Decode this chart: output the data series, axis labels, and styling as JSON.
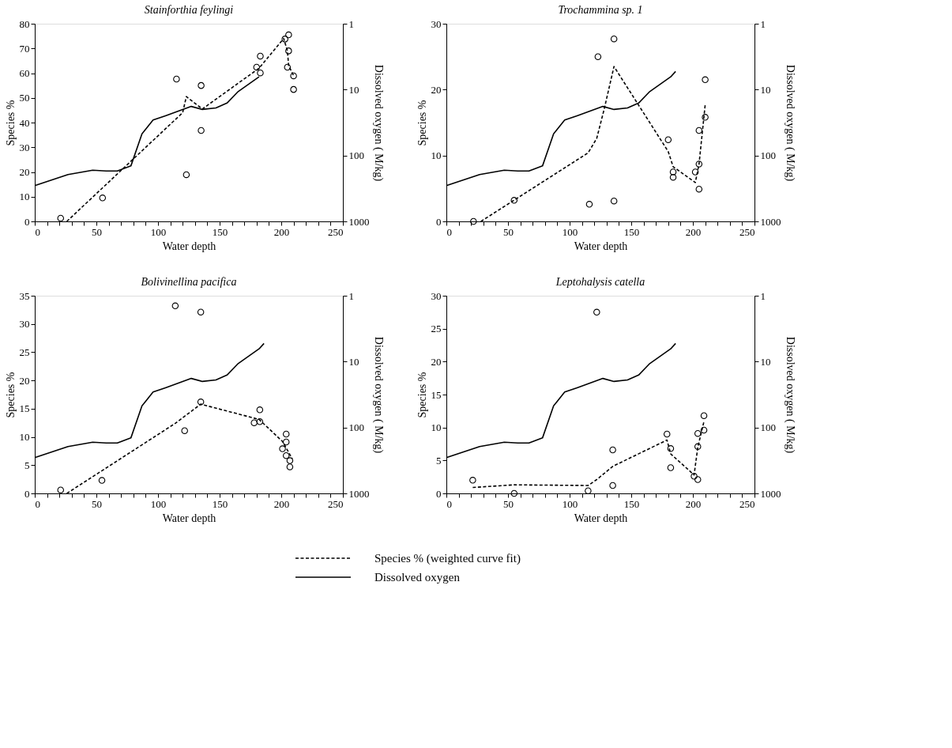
{
  "chart_data": [
    {
      "type": "scatter",
      "title": "Stainforthia feylingi",
      "xlabel": "Water depth",
      "ylabel": "Species %",
      "y2label": "Dissolved oxygen ( M/kg)",
      "log": "y2",
      "legend": "bottom",
      "xlim": [
        0,
        250
      ],
      "xticks": [
        0,
        {
          "value": 10,
          "label": null
        },
        {
          "value": 20,
          "label": null
        },
        {
          "value": 30,
          "label": null
        },
        {
          "value": 40,
          "label": null
        },
        50,
        {
          "value": 60,
          "label": null
        },
        {
          "value": 70,
          "label": null
        },
        {
          "value": 80,
          "label": null
        },
        {
          "value": 90,
          "label": null
        },
        100,
        {
          "value": 110,
          "label": null
        },
        {
          "value": 120,
          "label": null
        },
        {
          "value": 130,
          "label": null
        },
        {
          "value": 140,
          "label": null
        },
        150,
        {
          "value": 160,
          "label": null
        },
        {
          "value": 170,
          "label": null
        },
        {
          "value": 180,
          "label": null
        },
        {
          "value": 190,
          "label": null
        },
        200,
        {
          "value": 210,
          "label": null
        },
        {
          "value": 220,
          "label": null
        },
        {
          "value": 230,
          "label": null
        },
        {
          "value": 240,
          "label": null
        },
        250
      ],
      "ylim": [
        0,
        80
      ],
      "yticks": [
        0,
        10,
        20,
        30,
        40,
        50,
        60,
        70,
        80
      ],
      "y2lim": [
        1000,
        1
      ],
      "y2ticks": [
        1,
        10,
        100,
        1000
      ],
      "series": [
        {
          "marker": "circle",
          "color": "#000000",
          "x": [
            21,
            55,
            115,
            123,
            135,
            135,
            180,
            183,
            183,
            203,
            206,
            206,
            205,
            210,
            210
          ],
          "values": [
            1.3,
            9.5,
            57.6,
            18.9,
            55,
            36.8,
            62.4,
            66.9,
            60.1,
            73.8,
            75.5,
            69,
            62.4,
            58.9,
            53.4
          ]
        },
        {
          "type": "line",
          "name": "Species % (weighted curve fit)",
          "line_style": "dashed",
          "color": "#000000",
          "x": [
            26,
            120,
            123,
            136,
            182,
            202,
            205,
            206,
            210
          ],
          "values": [
            0,
            44,
            50.5,
            45.5,
            62,
            74,
            69,
            63,
            59
          ]
        },
        {
          "type": "line",
          "name": "Dissolved oxygen",
          "axis": "y2",
          "line_style": "solid",
          "color": "#000000",
          "x": [
            0,
            27,
            47,
            58,
            67,
            78,
            87,
            96,
            106,
            127,
            136,
            147,
            156,
            165,
            182
          ],
          "values": [
            286,
            195,
            167,
            172,
            172,
            144,
            47,
            29,
            25,
            18,
            20,
            19,
            16,
            10.7,
            6.4
          ]
        }
      ]
    },
    {
      "type": "scatter",
      "title": "Trochammina sp. 1",
      "xlabel": "Water depth",
      "ylabel": "Species %",
      "y2label": "Dissolved oxygen ( M/kg)",
      "log": "y2",
      "xlim": [
        0,
        250
      ],
      "xticks": [
        0,
        {
          "value": 10,
          "label": null
        },
        {
          "value": 20,
          "label": null
        },
        {
          "value": 30,
          "label": null
        },
        {
          "value": 40,
          "label": null
        },
        50,
        {
          "value": 60,
          "label": null
        },
        {
          "value": 70,
          "label": null
        },
        {
          "value": 80,
          "label": null
        },
        {
          "value": 90,
          "label": null
        },
        100,
        {
          "value": 110,
          "label": null
        },
        {
          "value": 120,
          "label": null
        },
        {
          "value": 130,
          "label": null
        },
        {
          "value": 140,
          "label": null
        },
        150,
        {
          "value": 160,
          "label": null
        },
        {
          "value": 170,
          "label": null
        },
        {
          "value": 180,
          "label": null
        },
        {
          "value": 190,
          "label": null
        },
        200,
        {
          "value": 210,
          "label": null
        },
        {
          "value": 220,
          "label": null
        },
        {
          "value": 230,
          "label": null
        },
        {
          "value": 240,
          "label": null
        },
        250
      ],
      "ylim": [
        0,
        30
      ],
      "yticks": [
        0,
        10,
        20,
        30
      ],
      "y2lim": [
        1000,
        1
      ],
      "y2ticks": [
        1,
        10,
        100,
        1000
      ],
      "series": [
        {
          "marker": "circle",
          "color": "#000000",
          "x": [
            22,
            55,
            116,
            123,
            136,
            136,
            180,
            184,
            184,
            202,
            205,
            205,
            205,
            210,
            210
          ],
          "values": [
            0,
            3.2,
            2.6,
            25,
            27.7,
            3.1,
            12.4,
            7.5,
            6.7,
            7.5,
            8.7,
            4.9,
            13.8,
            21.5,
            15.8
          ]
        },
        {
          "type": "line",
          "line_style": "dashed",
          "color": "#000000",
          "x": [
            28,
            115,
            122,
            128,
            136,
            180,
            184,
            202,
            205,
            210
          ],
          "values": [
            0,
            10.4,
            12.6,
            17,
            23.5,
            10.6,
            8.3,
            5.9,
            8.7,
            17.7
          ]
        },
        {
          "type": "line",
          "axis": "y2",
          "line_style": "solid",
          "color": "#000000",
          "x": [
            0,
            27,
            47,
            58,
            67,
            78,
            87,
            96,
            106,
            127,
            136,
            147,
            156,
            165,
            182,
            186
          ],
          "values": [
            286,
            195,
            167,
            172,
            172,
            144,
            47,
            29,
            25,
            18,
            20,
            19,
            16,
            10.7,
            6.4,
            5.3
          ]
        }
      ]
    },
    {
      "type": "scatter",
      "title": "Bolivinellina pacifica",
      "xlabel": "Water depth",
      "ylabel": "Species %",
      "y2label": "Dissolved oxygen ( M/kg)",
      "log": "y2",
      "xlim": [
        0,
        250
      ],
      "xticks": [
        0,
        {
          "value": 10,
          "label": null
        },
        {
          "value": 20,
          "label": null
        },
        {
          "value": 30,
          "label": null
        },
        {
          "value": 40,
          "label": null
        },
        50,
        {
          "value": 60,
          "label": null
        },
        {
          "value": 70,
          "label": null
        },
        {
          "value": 80,
          "label": null
        },
        {
          "value": 90,
          "label": null
        },
        100,
        {
          "value": 110,
          "label": null
        },
        {
          "value": 120,
          "label": null
        },
        {
          "value": 130,
          "label": null
        },
        {
          "value": 140,
          "label": null
        },
        150,
        {
          "value": 160,
          "label": null
        },
        {
          "value": 170,
          "label": null
        },
        {
          "value": 180,
          "label": null
        },
        {
          "value": 190,
          "label": null
        },
        200,
        {
          "value": 210,
          "label": null
        },
        {
          "value": 220,
          "label": null
        },
        {
          "value": 230,
          "label": null
        },
        {
          "value": 240,
          "label": null
        },
        250
      ],
      "ylim": [
        0,
        35
      ],
      "yticks": [
        0,
        5,
        10,
        15,
        20,
        25,
        30,
        35
      ],
      "y2lim": [
        1000,
        1
      ],
      "y2ticks": [
        1,
        10,
        100,
        1000
      ],
      "series": [
        {
          "marker": "circle",
          "color": "#000000",
          "x": [
            21,
            54.5,
            114,
            121.6,
            134.7,
            134.7,
            178,
            182.6,
            182.6,
            201,
            204,
            204,
            204,
            207,
            207
          ],
          "values": [
            0.6,
            2.3,
            33.2,
            11.1,
            32.1,
            16.2,
            12.5,
            14.8,
            12.7,
            7.9,
            10.5,
            9.1,
            6.7,
            5.8,
            4.7
          ]
        },
        {
          "type": "line",
          "line_style": "dashed",
          "color": "#000000",
          "x": [
            26,
            114,
            122.5,
            134.7,
            182,
            201,
            209
          ],
          "values": [
            0,
            12.4,
            13.8,
            15.8,
            13.1,
            9.2,
            6.1
          ]
        },
        {
          "type": "line",
          "axis": "y2",
          "line_style": "solid",
          "color": "#000000",
          "x": [
            0,
            27,
            47,
            58,
            67,
            78,
            87,
            96,
            106,
            127,
            136,
            147,
            156,
            165,
            182,
            186
          ],
          "values": [
            286,
            195,
            167,
            172,
            172,
            144,
            47,
            29,
            25,
            18,
            20,
            19,
            16,
            10.7,
            6.4,
            5.3
          ]
        }
      ]
    },
    {
      "type": "scatter",
      "title": "Leptohalysis catella",
      "xlabel": "Water depth",
      "ylabel": "Species %",
      "y2label": "Dissolved oxygen ( M/kg)",
      "log": "y2",
      "xlim": [
        0,
        250
      ],
      "xticks": [
        0,
        {
          "value": 10,
          "label": null
        },
        {
          "value": 20,
          "label": null
        },
        {
          "value": 30,
          "label": null
        },
        {
          "value": 40,
          "label": null
        },
        50,
        {
          "value": 60,
          "label": null
        },
        {
          "value": 70,
          "label": null
        },
        {
          "value": 80,
          "label": null
        },
        {
          "value": 90,
          "label": null
        },
        100,
        {
          "value": 110,
          "label": null
        },
        {
          "value": 120,
          "label": null
        },
        {
          "value": 130,
          "label": null
        },
        {
          "value": 140,
          "label": null
        },
        150,
        {
          "value": 160,
          "label": null
        },
        {
          "value": 170,
          "label": null
        },
        {
          "value": 180,
          "label": null
        },
        {
          "value": 190,
          "label": null
        },
        200,
        {
          "value": 210,
          "label": null
        },
        {
          "value": 220,
          "label": null
        },
        {
          "value": 230,
          "label": null
        },
        {
          "value": 240,
          "label": null
        },
        250
      ],
      "ylim": [
        0,
        30
      ],
      "yticks": [
        0,
        5,
        10,
        15,
        20,
        25,
        30
      ],
      "y2lim": [
        1000,
        1
      ],
      "y2ticks": [
        1,
        10,
        100,
        1000
      ],
      "series": [
        {
          "marker": "circle",
          "color": "#000000",
          "x": [
            21.4,
            55,
            115,
            122,
            135,
            135,
            179,
            182,
            182,
            201,
            204,
            204,
            204,
            209,
            209
          ],
          "values": [
            2.0,
            0,
            0.4,
            27.5,
            6.6,
            1.2,
            9.0,
            6.8,
            3.9,
            2.6,
            2.1,
            9.1,
            7.1,
            11.8,
            9.6
          ]
        },
        {
          "type": "line",
          "line_style": "dashed",
          "color": "#000000",
          "x": [
            21.4,
            55,
            115,
            122,
            135,
            179,
            182,
            201,
            204,
            209
          ],
          "values": [
            0.9,
            1.3,
            1.2,
            2.1,
            4.1,
            8.1,
            6.0,
            2.8,
            7.0,
            10.9
          ]
        },
        {
          "type": "line",
          "axis": "y2",
          "line_style": "solid",
          "color": "#000000",
          "x": [
            0,
            27,
            47,
            58,
            67,
            78,
            87,
            96,
            106,
            127,
            136,
            147,
            156,
            165,
            182,
            186
          ],
          "values": [
            286,
            195,
            167,
            172,
            172,
            144,
            47,
            29,
            25,
            18,
            20,
            19,
            16,
            10.7,
            6.4,
            5.3
          ]
        }
      ]
    }
  ]
}
